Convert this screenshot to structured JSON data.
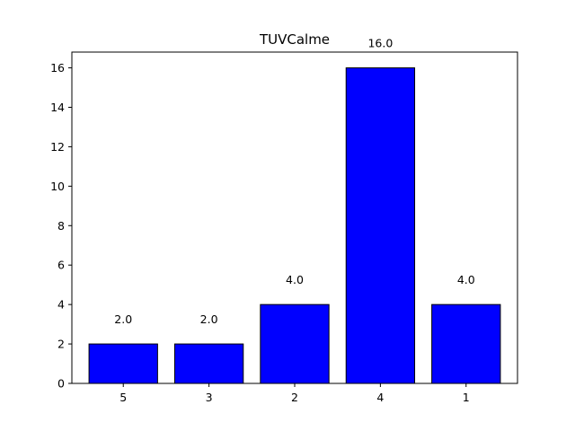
{
  "chart_data": {
    "type": "bar",
    "title": "TUVCalme",
    "xlabel": "",
    "ylabel": "",
    "categories": [
      "5",
      "3",
      "2",
      "4",
      "1"
    ],
    "values": [
      2.0,
      2.0,
      4.0,
      16.0,
      4.0
    ],
    "data_labels": [
      "2.0",
      "2.0",
      "4.0",
      "16.0",
      "4.0"
    ],
    "ylim": [
      0,
      16.8
    ],
    "yticks": [
      0,
      2,
      4,
      6,
      8,
      10,
      12,
      14,
      16
    ],
    "grid": false,
    "legend": "none",
    "colors": {
      "bar_fill": "#0000ff",
      "bar_edge": "#000000"
    }
  }
}
